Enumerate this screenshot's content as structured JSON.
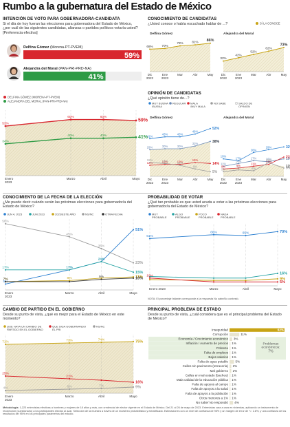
{
  "page": {
    "title": "Rumbo a la gubernatura del Estado de México",
    "note": "NOTA: El porcentaje faltante corresponde a la respuesta No sabe/No contestó.",
    "methodology_title": "Metodología:",
    "methodology": "1,223 entrevistas efectivas a hombres y mujeres de 18 años y más, con credencial de elector vigente en el Estado de México. Del 21 al 26 de mayo de 2023. Entrevistas cara a cara en viviendas, aplicando un instrumento de recolección (cuestionario) a los participantes electos al azar. Selección de la muestra a través de un muestreo probabilístico y estratificado. Estimaciones con un nivel de confianza de 95% y un margen de error de +/- 2.8%, y una confianza de los resultados del 95% en los principales parámetros del estudio."
  },
  "colors": {
    "red": "#d8262e",
    "green": "#2e9b45",
    "hatch": "#efe8cf",
    "blue": "#2b7fd0",
    "teal": "#26a3a3",
    "gold": "#c8a415",
    "grey": "#9c9c9c"
  },
  "vote": {
    "title": "INTENCIÓN DE VOTO PARA GOBERNADORA-CANDIDATA",
    "question": "Si el día de hoy fueran las elecciones para gobernadora del Estado de México, ¿por cuál de las siguientes candidatas, alianzas o partidos políticos votaría usted? [Preferencia efectiva]",
    "c1_name": "Delfina Gómez",
    "c1_party": " (Morena-PT-PVEM)",
    "c1_value": "59%",
    "c2_name": "Alejandra del Moral",
    "c2_party": " (PAN-PRI-PRD-NA)",
    "c2_value": "41%",
    "legend1": "DELFINA GÓMEZ (MORENA-PT-PVEM)",
    "legend2": "ALEJANDRA DEL MORAL (PAN-PRI-PRD-NA)"
  },
  "know": {
    "title": "CONOCIMIENTO DE CANDIDATAS",
    "question": "¿Usted conoce o había escuchado hablar de ...?",
    "legend": "SÍ LA CONOCE",
    "panel1": "Delfina Gómez",
    "panel2": "Alejandra del Moral"
  },
  "opinion": {
    "title": "OPINIÓN DE CANDIDATAS",
    "question": "¿Qué opinión tiene de...?",
    "legend": [
      "MUY BUENA /BUENA",
      "REGULAR",
      "MALA /MUY MALA",
      "NO SABE",
      "SALDO DE OPINIÓN"
    ],
    "panel1": "Delfina Gómez",
    "panel2": "Alejandra del Moral"
  },
  "date": {
    "title": "CONOCIMIENTO DE LA FECHA DE LA ELECCIÓN",
    "question": "¿Me puede decir cuándo serán las próximas elecciones para gobernador/a del Estado de México?",
    "legend": [
      "JUN 4, 2023",
      "JUN 2023",
      "2023/ESTE AÑO",
      "NS/NC",
      "OTRA FECHA"
    ]
  },
  "prob": {
    "title": "PROBABILIDAD DE VOTAR",
    "question": "¿Qué tan probable es que usted acuda a votar a las próximas elecciones para gobernador/a del Estado de México?",
    "legend": [
      "MUY PROBABLE",
      "ALGO PROBABLE",
      "POCO PROBABLE",
      "NADA PROBABLE"
    ]
  },
  "change": {
    "title": "CAMBIO DE PARTIDO EN EL GOBIERNO",
    "question": "Desde su punto de vista, ¿qué es mejor para el Estado de México en este momento?",
    "legend": [
      "QUE HAYA UN CAMBIO DE PARTIDO EN EL GOBIERNO",
      "QUE SIGA GOBERNANDO EL PRI",
      "NS/NC"
    ]
  },
  "problem": {
    "title": "PRINCIPAL PROBLEMA DE ESTADO",
    "question": "Desde su punto de vista, ¿cuál considera que es el principal problema del Estado de México?",
    "econ_label": "Problemas económicos:",
    "econ_value": "7%"
  },
  "chart_data": [
    {
      "type": "line",
      "title": "INTENCIÓN DE VOTO PARA GOBERNADORA-CANDIDATA",
      "categories": [
        "Enero 2023",
        "Marzo",
        "Abril",
        "Mayo"
      ],
      "x_labels": [
        "Enero\n2023",
        "Marzo",
        "Abril",
        "Mayo"
      ],
      "x": [
        0,
        2,
        3,
        4
      ],
      "series": [
        {
          "name": "DELFINA GÓMEZ (MORENA-PT-PVEM)",
          "values": [
            53,
            60,
            60,
            59
          ],
          "labels": [
            "53%",
            "60%",
            "60%",
            "59%"
          ]
        },
        {
          "name": "ALEJANDRA DEL MORAL (PAN-PRI-PRD-NA)",
          "values": [
            34,
            40,
            40,
            41
          ],
          "labels": [
            "34%",
            "40%",
            "40%",
            "41%"
          ]
        }
      ],
      "bars": [
        {
          "name": "Delfina Gómez",
          "value": 59
        },
        {
          "name": "Alejandra del Moral",
          "value": 41
        }
      ],
      "ylim": [
        0,
        70
      ]
    },
    {
      "type": "area",
      "title": "CONOCIMIENTO DE CANDIDATAS",
      "x_labels": [
        "Dic\n2022",
        "Ene\n2023",
        "Mar",
        "Abr",
        "May"
      ],
      "series": [
        {
          "name": "Delfina Gómez",
          "values": [
            68,
            70,
            78,
            81,
            86
          ],
          "labels": [
            "68%",
            "70%",
            "78%",
            "81%",
            "86%"
          ]
        },
        {
          "name": "Alejandra del Moral",
          "values": [
            32,
            42,
            52,
            62,
            73
          ],
          "labels": [
            "32%",
            "42%",
            "52%",
            "62%",
            "73%"
          ]
        }
      ],
      "ylim": [
        0,
        100
      ]
    },
    {
      "type": "line",
      "title": "OPINIÓN DE CANDIDATAS",
      "x_labels": [
        "Dic\n2022",
        "Ene\n2023",
        "Mar",
        "Abr",
        "May"
      ],
      "panels": [
        {
          "name": "Delfina Gómez",
          "series": [
            {
              "name": "MUY BUENA /BUENA",
              "values": [
                41,
                43,
                43,
                46,
                52
              ],
              "labels": [
                "41%",
                "43%",
                "43%",
                "46%",
                "52%"
              ]
            },
            {
              "name": "REGULAR",
              "values": [
                29,
                30,
                30,
                33,
                38
              ],
              "labels": [
                "29%",
                "30%",
                "30%",
                "33%",
                "38%"
              ]
            },
            {
              "name": "MALA /MUY MALA",
              "values": [
                12,
                13,
                13,
                15,
                14
              ],
              "labels": [
                "12%",
                "13%",
                "13%",
                "15%",
                "14%"
              ]
            },
            {
              "name": "NO SABE",
              "values": [
                15,
                14,
                12,
                8,
                5
              ],
              "labels": [
                "15%",
                "14%",
                "12%",
                "8%",
                "5%"
              ]
            },
            {
              "name": "SALDO DE OPINIÓN",
              "values": [
                29,
                30,
                30,
                33,
                38
              ],
              "labels": [
                "",
                "",
                "",
                "",
                "38%"
              ]
            }
          ]
        },
        {
          "name": "Alejandra del Moral",
          "series": [
            {
              "name": "MUY BUENA /BUENA",
              "values": [
                19,
                17,
                26,
                29,
                32
              ],
              "labels": [
                "19%",
                "17%",
                "26%",
                "29%",
                "32%"
              ]
            },
            {
              "name": "REGULAR",
              "values": [
                11,
                14,
                17,
                16,
                19
              ],
              "labels": [
                "11%",
                "14%",
                "17%",
                "16%",
                "19%"
              ]
            },
            {
              "name": "MALA /MUY MALA",
              "values": [
                8,
                9,
                11,
                13,
                21
              ],
              "labels": [
                "8%",
                "9%",
                "11%",
                "13%",
                "21%"
              ]
            },
            {
              "name": "NO SABE",
              "values": [
                5,
                7,
                6,
                15,
                9
              ],
              "labels": [
                "5%",
                "7%",
                "6%",
                "15%",
                "9%"
              ]
            },
            {
              "name": "SALDO DE OPINIÓN",
              "values": [
                8,
                9,
                11,
                13,
                11
              ],
              "labels": [
                "",
                "",
                "",
                "",
                "11%"
              ]
            }
          ]
        }
      ],
      "ylim": [
        0,
        60
      ]
    },
    {
      "type": "line",
      "title": "CONOCIMIENTO DE LA FECHA DE LA ELECCIÓN",
      "x_labels": [
        "Enero\n2023",
        "Marzo",
        "Abril",
        "Mayo"
      ],
      "x": [
        0,
        2,
        3,
        4
      ],
      "series": [
        {
          "name": "JUN 4, 2023",
          "values": [
            5,
            17,
            24,
            51
          ],
          "labels": [
            "5%",
            "17%",
            "24%",
            "51%"
          ]
        },
        {
          "name": "JUN 2023",
          "values": [
            17,
            17,
            24,
            15
          ],
          "labels": [
            "17%",
            "17%",
            "24%",
            "15%"
          ]
        },
        {
          "name": "2023/ESTE AÑO",
          "values": [
            7,
            8,
            10,
            11
          ],
          "labels": [
            "7%",
            "8%",
            "",
            "11%"
          ]
        },
        {
          "name": "NS/NC",
          "values": [
            56,
            45,
            35,
            23
          ],
          "labels": [
            "56%",
            "45%",
            "35%",
            "23%"
          ]
        },
        {
          "name": "OTRA FECHA",
          "values": [
            7,
            7,
            9,
            10
          ],
          "labels": [
            "7%",
            "",
            "9%",
            "10%"
          ]
        }
      ],
      "ylim": [
        0,
        60
      ]
    },
    {
      "type": "line",
      "title": "PROBABILIDAD DE VOTAR",
      "x_labels": [
        "Enero 2023",
        "Marzo",
        "Abril",
        "Mayo"
      ],
      "x": [
        0,
        2,
        3,
        4
      ],
      "series": [
        {
          "name": "MUY PROBABLE",
          "values": [
            61,
            66,
            65,
            70
          ],
          "labels": [
            "61%",
            "66%",
            "65%",
            "70%"
          ]
        },
        {
          "name": "ALGO PROBABLE",
          "values": [
            12,
            10,
            10,
            16
          ],
          "labels": [
            "",
            "",
            "",
            "16%"
          ]
        },
        {
          "name": "POCO PROBABLE",
          "values": [
            8,
            7,
            7,
            9
          ],
          "labels": [
            "",
            "",
            "",
            "9%"
          ]
        },
        {
          "name": "NADA PROBABLE",
          "values": [
            10,
            5,
            5,
            5
          ],
          "labels": [
            "10%",
            "",
            "",
            "5%"
          ]
        }
      ],
      "ylim": [
        0,
        80
      ]
    },
    {
      "type": "line",
      "title": "CAMBIO DE PARTIDO EN EL GOBIERNO",
      "x_labels": [
        "Enero\n2023",
        "Marzo",
        "Abril",
        "Mayo"
      ],
      "x": [
        0,
        2,
        3,
        4
      ],
      "series": [
        {
          "name": "QUE HAYA UN CAMBIO DE PARTIDO EN EL GOBIERNO",
          "values": [
            71,
            73,
            74,
            75
          ],
          "labels": [
            "71%",
            "73%",
            "74%",
            "75%"
          ]
        },
        {
          "name": "QUE SIGA GOBERNANDO EL PRI",
          "values": [
            25,
            21,
            19,
            16
          ],
          "labels": [
            "25%",
            "21%",
            "",
            "16%"
          ]
        },
        {
          "name": "NS/NC",
          "values": [
            4,
            6,
            7,
            9
          ],
          "labels": [
            "4%",
            "6%",
            "7%",
            "9%"
          ]
        }
      ],
      "ylim": [
        0,
        85
      ]
    },
    {
      "type": "bar",
      "title": "PRINCIPAL PROBLEMA DE ESTADO",
      "categories": [
        "Inseguridad",
        "Corrupción",
        "Economía / Crecimiento económico",
        "Inflación / Aumento de precios",
        "Pobreza",
        "Falta de empleos",
        "Bajos salarios",
        "Falta de agua potable",
        "Calles sin pavimento (terracería)",
        "Mal gobierno",
        "Calles en mal estado (bacheo)",
        "Mala calidad de la educación pública",
        "Falta de apoyos al campo",
        "Falta de apoyos a la salud",
        "Falta de apoyos a la población",
        "Otros menores a 1%",
        "No sabe/ No respondió"
      ],
      "values": [
        62,
        11,
        3,
        1,
        1,
        1,
        1,
        5,
        2,
        2,
        1,
        1,
        1,
        1,
        1,
        1,
        4
      ],
      "labels": [
        "62%",
        "11%",
        "3%",
        "1%",
        "1%",
        "1%",
        "1%",
        "5%",
        "2%",
        "2%",
        "1%",
        "1%",
        "1%",
        "1%",
        "1%",
        "1%",
        "4%"
      ],
      "xlim": [
        0,
        62
      ]
    }
  ]
}
